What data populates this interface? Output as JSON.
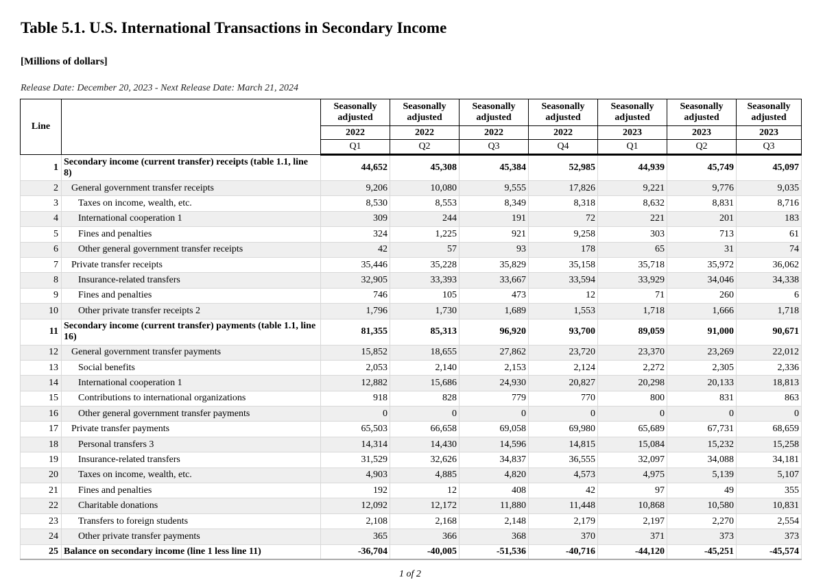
{
  "title": "Table 5.1. U.S. International Transactions in Secondary Income",
  "subtitle": "[Millions of dollars]",
  "release": "Release Date: December 20, 2023 - Next Release Date: March 21, 2024",
  "header": {
    "line": "Line",
    "columns": [
      {
        "sa": "Seasonally adjusted",
        "year": "2022",
        "q": "Q1"
      },
      {
        "sa": "Seasonally adjusted",
        "year": "2022",
        "q": "Q2"
      },
      {
        "sa": "Seasonally adjusted",
        "year": "2022",
        "q": "Q3"
      },
      {
        "sa": "Seasonally adjusted",
        "year": "2022",
        "q": "Q4"
      },
      {
        "sa": "Seasonally adjusted",
        "year": "2023",
        "q": "Q1"
      },
      {
        "sa": "Seasonally adjusted",
        "year": "2023",
        "q": "Q2"
      },
      {
        "sa": "Seasonally adjusted",
        "year": "2023",
        "q": "Q3"
      }
    ]
  },
  "rows": [
    {
      "line": "1",
      "label": "Secondary income (current transfer) receipts (table 1.1, line 8)",
      "indent": 0,
      "bold": true,
      "values": [
        "44,652",
        "45,308",
        "45,384",
        "52,985",
        "44,939",
        "45,749",
        "45,097"
      ]
    },
    {
      "line": "2",
      "label": "General government transfer receipts",
      "indent": 1,
      "values": [
        "9,206",
        "10,080",
        "9,555",
        "17,826",
        "9,221",
        "9,776",
        "9,035"
      ]
    },
    {
      "line": "3",
      "label": "Taxes on income, wealth, etc.",
      "indent": 2,
      "values": [
        "8,530",
        "8,553",
        "8,349",
        "8,318",
        "8,632",
        "8,831",
        "8,716"
      ]
    },
    {
      "line": "4",
      "label": "International cooperation 1",
      "indent": 2,
      "values": [
        "309",
        "244",
        "191",
        "72",
        "221",
        "201",
        "183"
      ]
    },
    {
      "line": "5",
      "label": "Fines and penalties",
      "indent": 2,
      "values": [
        "324",
        "1,225",
        "921",
        "9,258",
        "303",
        "713",
        "61"
      ]
    },
    {
      "line": "6",
      "label": "Other general government transfer receipts",
      "indent": 2,
      "values": [
        "42",
        "57",
        "93",
        "178",
        "65",
        "31",
        "74"
      ]
    },
    {
      "line": "7",
      "label": "Private transfer receipts",
      "indent": 1,
      "values": [
        "35,446",
        "35,228",
        "35,829",
        "35,158",
        "35,718",
        "35,972",
        "36,062"
      ]
    },
    {
      "line": "8",
      "label": "Insurance-related transfers",
      "indent": 2,
      "values": [
        "32,905",
        "33,393",
        "33,667",
        "33,594",
        "33,929",
        "34,046",
        "34,338"
      ]
    },
    {
      "line": "9",
      "label": "Fines and penalties",
      "indent": 2,
      "values": [
        "746",
        "105",
        "473",
        "12",
        "71",
        "260",
        "6"
      ]
    },
    {
      "line": "10",
      "label": "Other private transfer receipts 2",
      "indent": 2,
      "values": [
        "1,796",
        "1,730",
        "1,689",
        "1,553",
        "1,718",
        "1,666",
        "1,718"
      ]
    },
    {
      "line": "11",
      "label": "Secondary income (current transfer) payments (table 1.1, line 16)",
      "indent": 0,
      "bold": true,
      "values": [
        "81,355",
        "85,313",
        "96,920",
        "93,700",
        "89,059",
        "91,000",
        "90,671"
      ]
    },
    {
      "line": "12",
      "label": "General government transfer payments",
      "indent": 1,
      "values": [
        "15,852",
        "18,655",
        "27,862",
        "23,720",
        "23,370",
        "23,269",
        "22,012"
      ]
    },
    {
      "line": "13",
      "label": "Social benefits",
      "indent": 2,
      "values": [
        "2,053",
        "2,140",
        "2,153",
        "2,124",
        "2,272",
        "2,305",
        "2,336"
      ]
    },
    {
      "line": "14",
      "label": "International cooperation 1",
      "indent": 2,
      "values": [
        "12,882",
        "15,686",
        "24,930",
        "20,827",
        "20,298",
        "20,133",
        "18,813"
      ]
    },
    {
      "line": "15",
      "label": "Contributions to international organizations",
      "indent": 2,
      "values": [
        "918",
        "828",
        "779",
        "770",
        "800",
        "831",
        "863"
      ]
    },
    {
      "line": "16",
      "label": "Other general government transfer payments",
      "indent": 2,
      "values": [
        "0",
        "0",
        "0",
        "0",
        "0",
        "0",
        "0"
      ]
    },
    {
      "line": "17",
      "label": "Private transfer payments",
      "indent": 1,
      "values": [
        "65,503",
        "66,658",
        "69,058",
        "69,980",
        "65,689",
        "67,731",
        "68,659"
      ]
    },
    {
      "line": "18",
      "label": "Personal transfers 3",
      "indent": 2,
      "values": [
        "14,314",
        "14,430",
        "14,596",
        "14,815",
        "15,084",
        "15,232",
        "15,258"
      ]
    },
    {
      "line": "19",
      "label": "Insurance-related transfers",
      "indent": 2,
      "values": [
        "31,529",
        "32,626",
        "34,837",
        "36,555",
        "32,097",
        "34,088",
        "34,181"
      ]
    },
    {
      "line": "20",
      "label": "Taxes on income, wealth, etc.",
      "indent": 2,
      "values": [
        "4,903",
        "4,885",
        "4,820",
        "4,573",
        "4,975",
        "5,139",
        "5,107"
      ]
    },
    {
      "line": "21",
      "label": "Fines and penalties",
      "indent": 2,
      "values": [
        "192",
        "12",
        "408",
        "42",
        "97",
        "49",
        "355"
      ]
    },
    {
      "line": "22",
      "label": "Charitable donations",
      "indent": 2,
      "values": [
        "12,092",
        "12,172",
        "11,880",
        "11,448",
        "10,868",
        "10,580",
        "10,831"
      ]
    },
    {
      "line": "23",
      "label": "Transfers to foreign students",
      "indent": 2,
      "values": [
        "2,108",
        "2,168",
        "2,148",
        "2,179",
        "2,197",
        "2,270",
        "2,554"
      ]
    },
    {
      "line": "24",
      "label": "Other private transfer payments",
      "indent": 2,
      "values": [
        "365",
        "366",
        "368",
        "370",
        "371",
        "373",
        "373"
      ]
    },
    {
      "line": "25",
      "label": "Balance on secondary income (line 1 less line 11)",
      "indent": 0,
      "bold": true,
      "last": true,
      "values": [
        "-36,704",
        "-40,005",
        "-51,536",
        "-40,716",
        "-44,120",
        "-45,251",
        "-45,574"
      ]
    }
  ],
  "page": "1 of 2"
}
